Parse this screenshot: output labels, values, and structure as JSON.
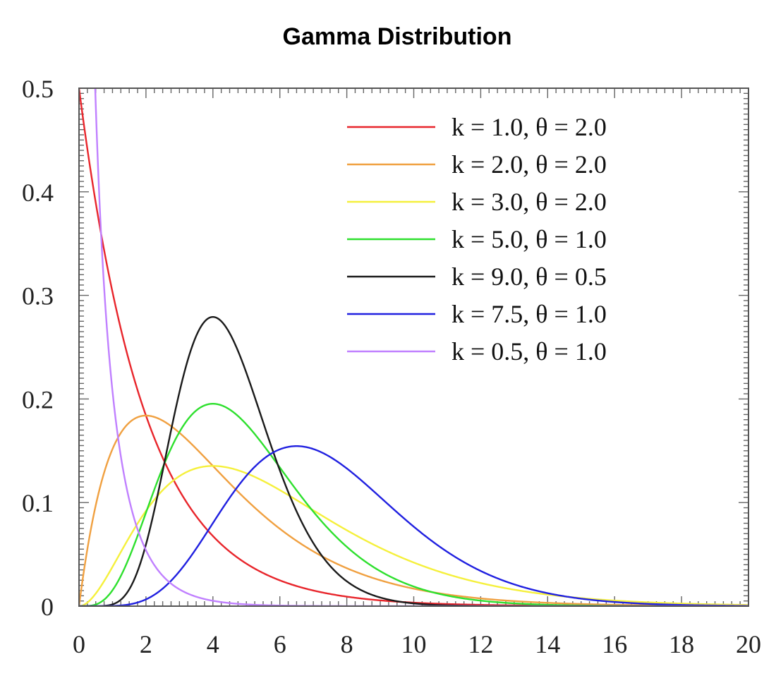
{
  "chart_data": {
    "type": "line",
    "title": "Gamma Distribution",
    "xlabel": "",
    "ylabel": "",
    "xlim": [
      0,
      20
    ],
    "ylim": [
      0,
      0.5
    ],
    "x_ticks": [
      0,
      2,
      4,
      6,
      8,
      10,
      12,
      14,
      16,
      18,
      20
    ],
    "x_tick_labels": [
      "0",
      "2",
      "4",
      "6",
      "8",
      "10",
      "12",
      "14",
      "16",
      "18",
      "20"
    ],
    "y_ticks": [
      0,
      0.1,
      0.2,
      0.3,
      0.4,
      0.5
    ],
    "y_tick_labels": [
      "0",
      "0.1",
      "0.2",
      "0.3",
      "0.4",
      "0.5"
    ],
    "grid": false,
    "legend_position": "top-right",
    "series": [
      {
        "name": "k = 1.0, θ = 2.0",
        "k": 1.0,
        "theta": 2.0,
        "color": "#e8252b"
      },
      {
        "name": "k = 2.0, θ = 2.0",
        "k": 2.0,
        "theta": 2.0,
        "color": "#f0a040"
      },
      {
        "name": "k = 3.0, θ = 2.0",
        "k": 3.0,
        "theta": 2.0,
        "color": "#f5f03c"
      },
      {
        "name": "k = 5.0, θ = 1.0",
        "k": 5.0,
        "theta": 1.0,
        "color": "#2ee02e"
      },
      {
        "name": "k = 9.0, θ = 0.5",
        "k": 9.0,
        "theta": 0.5,
        "color": "#1a1a1a"
      },
      {
        "name": "k = 7.5, θ = 1.0",
        "k": 7.5,
        "theta": 1.0,
        "color": "#2020e0"
      },
      {
        "name": "k = 0.5, θ = 1.0",
        "k": 0.5,
        "theta": 1.0,
        "color": "#c080ff"
      }
    ]
  }
}
